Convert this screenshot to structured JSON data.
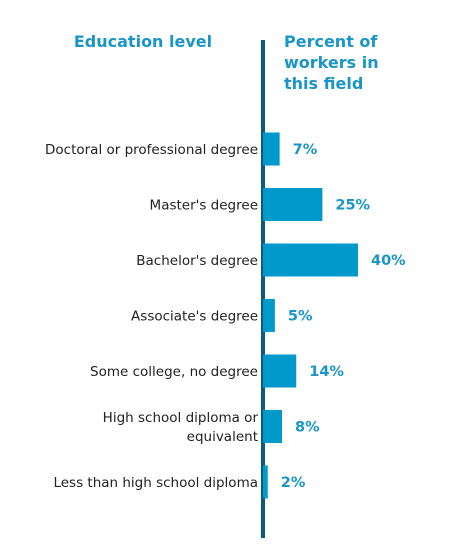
{
  "colors": {
    "bar": "#0099cc",
    "axis": "#0b5c7a",
    "header": "#1a95c7",
    "value_text": "#1a95c7",
    "label_text": "#222222"
  },
  "headers": {
    "left": "Education level",
    "right_lines": [
      "Percent of",
      "workers in",
      "this field"
    ]
  },
  "chart_data": {
    "type": "bar",
    "orientation": "horizontal",
    "categories": [
      [
        "Doctoral or professional degree"
      ],
      [
        "Master's degree"
      ],
      [
        "Bachelor's degree"
      ],
      [
        "Associate's degree"
      ],
      [
        "Some college, no degree"
      ],
      [
        "High school diploma or",
        "equivalent"
      ],
      [
        "Less than high school diploma"
      ]
    ],
    "values": [
      7,
      25,
      40,
      5,
      14,
      8,
      2
    ],
    "value_labels": [
      "7%",
      "25%",
      "40%",
      "5%",
      "14%",
      "8%",
      "2%"
    ],
    "unit": "%",
    "grid": false,
    "legend": "none"
  }
}
